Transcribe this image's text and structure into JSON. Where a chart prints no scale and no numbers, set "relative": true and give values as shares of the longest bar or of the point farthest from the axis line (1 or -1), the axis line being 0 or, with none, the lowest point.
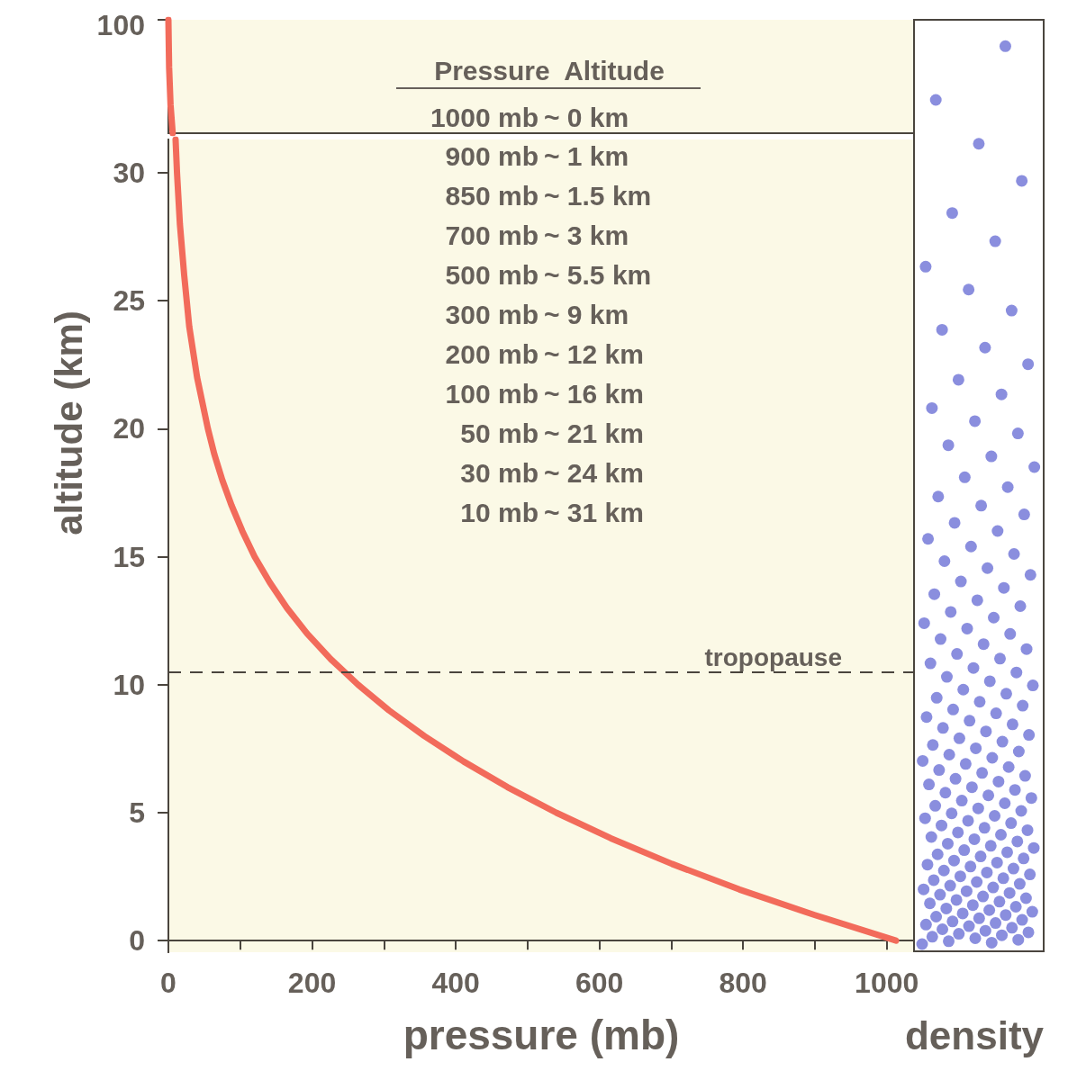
{
  "chart_data": [
    {
      "type": "line",
      "xlim": [
        0,
        1038
      ],
      "relative": true,
      "annotations": [
        "100"
      ],
      "series": [
        {
          "color": "#f26b5b",
          "x": [
            6,
            3,
            1,
            0
          ],
          "values": [
            0,
            0.25,
            0.58,
            1
          ]
        }
      ]
    },
    {
      "type": "line",
      "xlabel": "pressure (mb)",
      "ylabel": "altitude (km)",
      "xlim": [
        0,
        1038
      ],
      "xticks": [
        0,
        {
          "value": 100,
          "label": null
        },
        200,
        {
          "value": 300,
          "label": null
        },
        400,
        {
          "value": 500,
          "label": null
        },
        600,
        {
          "value": 700,
          "label": null
        },
        800,
        {
          "value": 900,
          "label": null
        },
        1000
      ],
      "ylim": [
        -0.45,
        31.3
      ],
      "yticks": [
        0,
        5,
        10,
        15,
        20,
        25,
        30
      ],
      "series": [
        {
          "color": "#f26b5b",
          "x": [
            1013,
            900,
            795,
            701,
            616,
            540,
            472,
            411,
            356,
            307,
            264,
            245,
            226,
            193,
            165,
            141,
            120,
            103,
            88,
            75,
            64,
            55,
            40,
            29,
            22,
            16,
            12,
            10
          ],
          "values": [
            0,
            1,
            2,
            3,
            4,
            5,
            6,
            7,
            8,
            9,
            10,
            10.5,
            11,
            12,
            13,
            14,
            15,
            16,
            17,
            18,
            19,
            20,
            22,
            24,
            26,
            28,
            30,
            31.3
          ]
        }
      ],
      "ref_lines": [
        {
          "axis": "y",
          "value": 10.5,
          "label": "tropopause",
          "line_style": "dashed"
        }
      ],
      "annotations": [
        "Pressure  Altitude",
        "1000 mb ~ 0 km",
        "900 mb ~ 1 km",
        "850 mb ~ 1.5 km",
        "700 mb ~ 3 km",
        "500 mb ~ 5.5 km",
        "300 mb ~ 9 km",
        "200 mb ~ 12 km",
        "100 mb ~ 16 km",
        "50 mb ~ 21 km",
        "30 mb ~ 24 km",
        "10 mb ~ 31 km",
        "density"
      ]
    }
  ]
}
